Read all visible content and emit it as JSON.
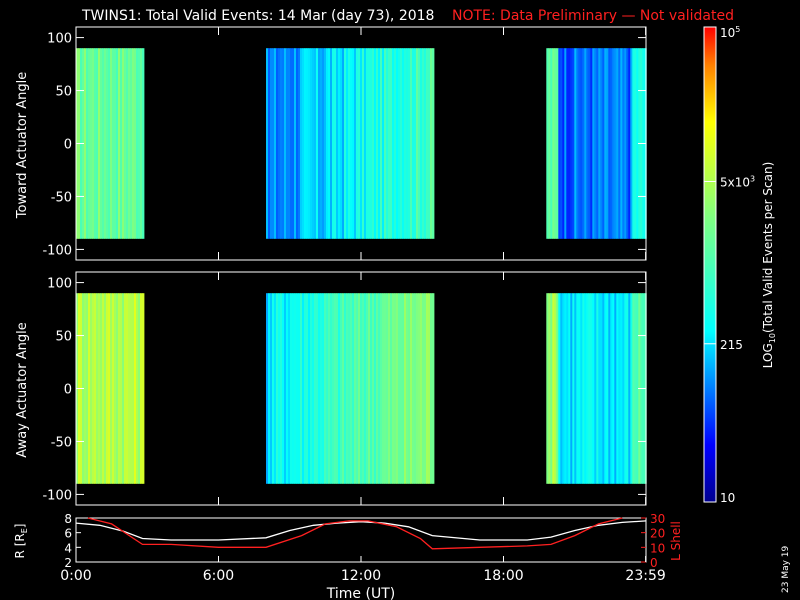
{
  "header": {
    "title": "TWINS1: Total Valid Events: 14 Mar (day  73), 2018",
    "note": "NOTE: Data Preliminary — Not validated",
    "note_color": "#ff2020"
  },
  "footer": {
    "date_stamp": "23 May 19"
  },
  "chart_data": [
    {
      "type": "heatmap",
      "ylabel": "Toward Actuator Angle",
      "ylim": [
        -110,
        110
      ],
      "yticks": [
        -100,
        -50,
        0,
        50,
        100
      ],
      "y_data_range": [
        -90,
        90
      ],
      "xlim": [
        0,
        24
      ],
      "data_intervals": [
        {
          "start": 0.0,
          "end": 2.8,
          "log_level": 3.25
        },
        {
          "start": 8.0,
          "end": 15.0,
          "log_level": 2.1
        },
        {
          "start": 19.8,
          "end": 24.0,
          "log_level": 1.9
        }
      ]
    },
    {
      "type": "heatmap",
      "ylabel": "Away Actuator Angle",
      "ylim": [
        -110,
        110
      ],
      "yticks": [
        -100,
        -50,
        0,
        50,
        100
      ],
      "y_data_range": [
        -90,
        90
      ],
      "xlim": [
        0,
        24
      ],
      "data_intervals": [
        {
          "start": 0.0,
          "end": 2.8,
          "log_level": 3.75
        },
        {
          "start": 8.0,
          "end": 15.0,
          "log_level": 2.6
        },
        {
          "start": 19.8,
          "end": 24.0,
          "log_level": 2.4
        }
      ]
    },
    {
      "type": "line",
      "ylabel_left": "R [R",
      "ylabel_left_sub": "E",
      "ylabel_left_end": "]",
      "ylabel_right": "L Shell",
      "ylim_left": [
        2,
        8
      ],
      "yticks_left": [
        2,
        4,
        6,
        8
      ],
      "ylim_right": [
        0,
        30
      ],
      "yticks_right": [
        0,
        10,
        20,
        30
      ],
      "right_axis_color": "#ff2020",
      "xlabel": "Time (UT)",
      "xticks": [
        0,
        6,
        12,
        18,
        23.983
      ],
      "xtick_labels": [
        "0:00",
        "6:00",
        "12:00",
        "18:00",
        "23:59"
      ],
      "series": [
        {
          "axis": "left",
          "color": "#ffffff",
          "x": [
            0,
            1,
            2,
            2.8,
            4,
            6,
            8,
            9,
            10,
            11,
            12,
            13,
            14,
            15,
            17,
            19,
            20,
            21,
            22,
            23,
            24
          ],
          "y": [
            7.3,
            7.0,
            6.2,
            5.2,
            5.0,
            5.0,
            5.3,
            6.3,
            7.0,
            7.3,
            7.5,
            7.3,
            6.8,
            5.6,
            5.0,
            5.0,
            5.4,
            6.3,
            7.0,
            7.4,
            7.6
          ]
        },
        {
          "axis": "right",
          "color": "#ff2020",
          "x": [
            0.5,
            1.5,
            2.8,
            4,
            6,
            8,
            9.5,
            10.5,
            11.5,
            12.3,
            13.5,
            14.5,
            15,
            17,
            19,
            20,
            21,
            22,
            23
          ],
          "y": [
            31,
            26,
            12,
            12,
            10,
            10,
            18,
            26,
            28,
            28,
            24,
            16,
            9,
            10,
            11,
            12,
            18,
            26,
            32
          ]
        }
      ]
    }
  ],
  "colorbar": {
    "label_main": "LOG",
    "label_sub": "10",
    "label_rest": "(Total Valid Events per Scan)",
    "scale": "log",
    "range": [
      10,
      100000
    ],
    "ticks": [
      {
        "value": 10,
        "text": "10"
      },
      {
        "value": 215,
        "text": "215"
      },
      {
        "value": 5000,
        "text": "5x10",
        "exp": "3"
      },
      {
        "value": 100000,
        "text": "10",
        "exp": "5"
      }
    ]
  }
}
